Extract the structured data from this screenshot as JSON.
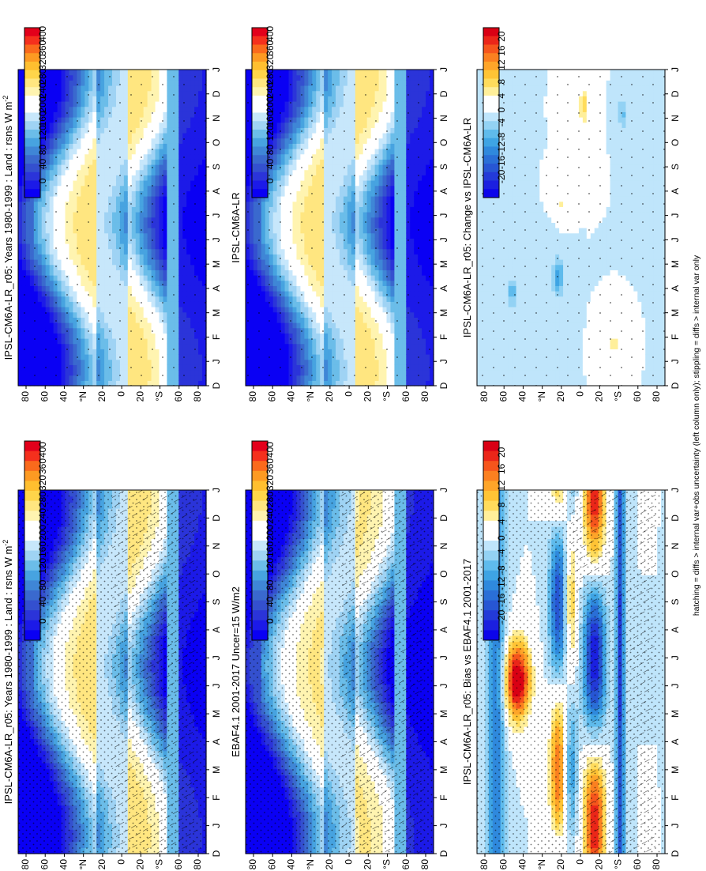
{
  "footer_note": "hatching = diffs > internal var+obs uncertainty (left column only); stippling = diffs > internal var only",
  "chart_data": [
    {
      "type": "heatmap",
      "title": "IPSL-CM6A-LR_r05: Years 1980-1999 : Land : rsns W m",
      "title_superscript": "-2",
      "months": [
        "D",
        "J",
        "F",
        "M",
        "A",
        "M",
        "J",
        "J",
        "A",
        "S",
        "O",
        "N",
        "D",
        "J"
      ],
      "latitude_ticks": [
        "80",
        "60",
        "40",
        "°N",
        "20",
        "0",
        "20",
        "°S",
        "60",
        "80"
      ],
      "colorbar_ticks": [
        "400",
        "360",
        "320",
        "280",
        "240",
        "200",
        "160",
        "120",
        "80",
        "40",
        "0"
      ],
      "palette": "absolute",
      "hatching": true,
      "stippling": "dense"
    },
    {
      "type": "heatmap",
      "title": "IPSL-CM6A-LR_r05: Years 1980-1999 : Land : rsns W m",
      "title_superscript": "-2",
      "months": [
        "D",
        "J",
        "F",
        "M",
        "A",
        "M",
        "J",
        "J",
        "A",
        "S",
        "O",
        "N",
        "D",
        "J"
      ],
      "latitude_ticks": [
        "80",
        "60",
        "40",
        "°N",
        "20",
        "0",
        "20",
        "°S",
        "60",
        "80"
      ],
      "colorbar_ticks": [
        "400",
        "360",
        "320",
        "280",
        "240",
        "200",
        "160",
        "120",
        "80",
        "40",
        "0"
      ],
      "palette": "absolute",
      "hatching": false,
      "stippling": "sparse"
    },
    {
      "type": "heatmap",
      "title": "EBAF4.1 2001-2017 Uncer=15 W/m2",
      "title_superscript": "",
      "months": [
        "D",
        "J",
        "F",
        "M",
        "A",
        "M",
        "J",
        "J",
        "A",
        "S",
        "O",
        "N",
        "D",
        "J"
      ],
      "latitude_ticks": [
        "80",
        "60",
        "40",
        "°N",
        "20",
        "0",
        "20",
        "°S",
        "60",
        "80"
      ],
      "colorbar_ticks": [
        "400",
        "360",
        "320",
        "280",
        "240",
        "200",
        "160",
        "120",
        "80",
        "40",
        "0"
      ],
      "palette": "absolute",
      "hatching": true,
      "stippling": "dense"
    },
    {
      "type": "heatmap",
      "title": "IPSL-CM6A-LR",
      "title_superscript": "",
      "months": [
        "D",
        "J",
        "F",
        "M",
        "A",
        "M",
        "J",
        "J",
        "A",
        "S",
        "O",
        "N",
        "D",
        "J"
      ],
      "latitude_ticks": [
        "80",
        "60",
        "40",
        "°N",
        "20",
        "0",
        "20",
        "°S",
        "60",
        "80"
      ],
      "colorbar_ticks": [
        "400",
        "360",
        "320",
        "280",
        "240",
        "200",
        "160",
        "120",
        "80",
        "40",
        "0"
      ],
      "palette": "absolute",
      "hatching": false,
      "stippling": "sparse"
    },
    {
      "type": "heatmap",
      "title": "IPSL-CM6A-LR_r05: Bias vs EBAF4.1 2001-2017",
      "title_superscript": "",
      "months": [
        "D",
        "J",
        "F",
        "M",
        "A",
        "M",
        "J",
        "J",
        "A",
        "S",
        "O",
        "N",
        "D",
        "J"
      ],
      "latitude_ticks": [
        "80",
        "60",
        "40",
        "°N",
        "20",
        "0",
        "20",
        "°S",
        "60",
        "80"
      ],
      "colorbar_ticks": [
        "20",
        "16",
        "12",
        "8",
        "4",
        "0",
        "-4",
        "-8",
        "-12",
        "-16",
        "-20"
      ],
      "palette": "diff",
      "hatching": true,
      "stippling": "dense"
    },
    {
      "type": "heatmap",
      "title": "IPSL-CM6A-LR_r05: Change vs IPSL-CM6A-LR",
      "title_superscript": "",
      "months": [
        "D",
        "J",
        "F",
        "M",
        "A",
        "M",
        "J",
        "J",
        "A",
        "S",
        "O",
        "N",
        "D",
        "J"
      ],
      "latitude_ticks": [
        "80",
        "60",
        "40",
        "°N",
        "20",
        "0",
        "20",
        "°S",
        "60",
        "80"
      ],
      "colorbar_ticks": [
        "20",
        "16",
        "12",
        "8",
        "4",
        "0",
        "-4",
        "-8",
        "-12",
        "-16",
        "-20"
      ],
      "palette": "diff",
      "hatching": false,
      "stippling": "sparse"
    }
  ],
  "palettes": {
    "absolute": [
      "#e3001b",
      "#f5301d",
      "#fa6a1c",
      "#fd9a22",
      "#ffbf2f",
      "#ffd54a",
      "#ffe680",
      "#fff4b0",
      "#ffffff",
      "#ffffff",
      "#c7e7fb",
      "#9fd3f4",
      "#6bbde9",
      "#47a3e0",
      "#3f86d6",
      "#3a69ce",
      "#3450cf",
      "#2b34d9",
      "#1c1ae8",
      "#0a00f4"
    ],
    "diff": [
      "#d90014",
      "#eb2619",
      "#f6551c",
      "#fb8020",
      "#fea529",
      "#ffc435",
      "#ffdc5c",
      "#ffef9a",
      "#ffffff",
      "#ffffff",
      "#bfe5fb",
      "#93d2f4",
      "#5fbbec",
      "#3ea4e4",
      "#2f89dd",
      "#2a6fd7",
      "#2756d4",
      "#233ad8",
      "#1b20e0",
      "#0c05ea"
    ]
  }
}
